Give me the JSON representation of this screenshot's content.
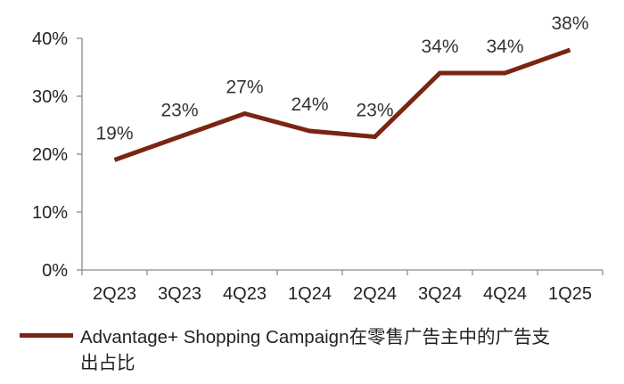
{
  "chart_data": {
    "type": "line",
    "title": "",
    "xlabel": "",
    "ylabel": "",
    "categories": [
      "2Q23",
      "3Q23",
      "4Q23",
      "1Q24",
      "2Q24",
      "3Q24",
      "4Q24",
      "1Q25"
    ],
    "y_ticks": [
      "0%",
      "10%",
      "20%",
      "30%",
      "40%"
    ],
    "ylim": [
      0,
      40
    ],
    "grid": false,
    "legend_position": "bottom",
    "series": [
      {
        "name": "Advantage+ Shopping Campaign在零售广告主中的广告支出占比",
        "name_line1": "Advantage+ Shopping Campaign在零售广告主中的广告支",
        "name_line2": "出占比",
        "values": [
          19,
          23,
          27,
          24,
          23,
          34,
          34,
          38
        ],
        "labels": [
          "19%",
          "23%",
          "27%",
          "24%",
          "23%",
          "34%",
          "34%",
          "38%"
        ],
        "color": "#7b2511"
      }
    ]
  }
}
